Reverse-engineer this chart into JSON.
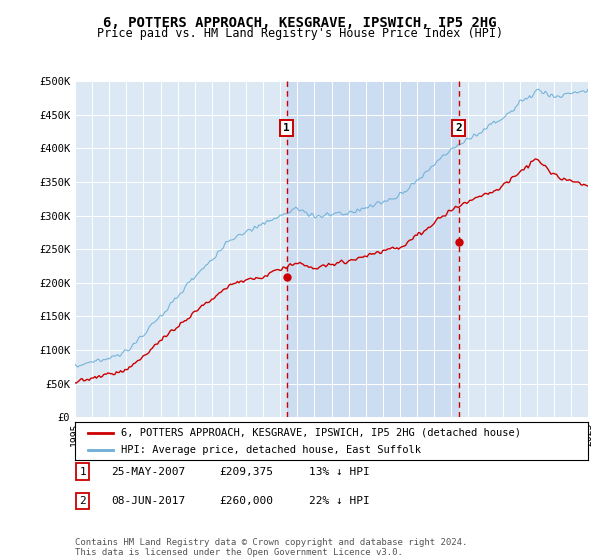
{
  "title": "6, POTTERS APPROACH, KESGRAVE, IPSWICH, IP5 2HG",
  "subtitle": "Price paid vs. HM Land Registry's House Price Index (HPI)",
  "ylim": [
    0,
    500000
  ],
  "yticks": [
    0,
    50000,
    100000,
    150000,
    200000,
    250000,
    300000,
    350000,
    400000,
    450000,
    500000
  ],
  "ytick_labels": [
    "£0",
    "£50K",
    "£100K",
    "£150K",
    "£200K",
    "£250K",
    "£300K",
    "£350K",
    "£400K",
    "£450K",
    "£500K"
  ],
  "plot_bg_color": "#dce9f5",
  "hpi_color": "#6baed6",
  "price_color": "#cc0000",
  "shade_color": "#c6d9f0",
  "marker1_x": 2007.38,
  "marker1_y": 209375,
  "marker2_x": 2017.44,
  "marker2_y": 260000,
  "legend_entry1": "6, POTTERS APPROACH, KESGRAVE, IPSWICH, IP5 2HG (detached house)",
  "legend_entry2": "HPI: Average price, detached house, East Suffolk",
  "note1_label": "1",
  "note1_date": "25-MAY-2007",
  "note1_price": "£209,375",
  "note1_hpi": "13% ↓ HPI",
  "note2_label": "2",
  "note2_date": "08-JUN-2017",
  "note2_price": "£260,000",
  "note2_hpi": "22% ↓ HPI",
  "footer": "Contains HM Land Registry data © Crown copyright and database right 2024.\nThis data is licensed under the Open Government Licence v3.0.",
  "xmin": 1995,
  "xmax": 2025
}
